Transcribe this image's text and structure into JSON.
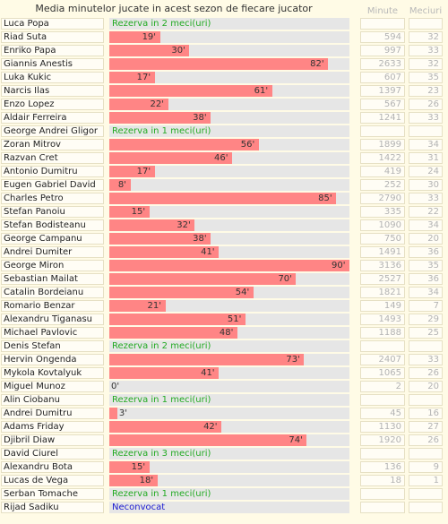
{
  "chart_data": {
    "type": "bar",
    "title": "Media minutelor jucate in acest sezon de fiecare jucator",
    "columns": {
      "minutes": "Minute",
      "matches": "Meciuri"
    },
    "xlim": [
      0,
      90
    ],
    "colors": {
      "bar": "#ff8585",
      "track": "#e6e6e6",
      "reserve": "#22aa22",
      "uncalled": "#1a1ad0"
    },
    "rows": [
      {
        "name": "Luca Popa",
        "note": "Rezerva in 2 meci(uri)",
        "note_type": "reserve"
      },
      {
        "name": "Riad Suta",
        "avg": 19,
        "label": "19'",
        "minutes": "594",
        "matches": "32"
      },
      {
        "name": "Enriko Papa",
        "avg": 30,
        "label": "30'",
        "minutes": "997",
        "matches": "33"
      },
      {
        "name": "Giannis Anestis",
        "avg": 82,
        "label": "82'",
        "minutes": "2633",
        "matches": "32"
      },
      {
        "name": "Luka Kukic",
        "avg": 17,
        "label": "17'",
        "minutes": "607",
        "matches": "35"
      },
      {
        "name": "Narcis Ilas",
        "avg": 61,
        "label": "61'",
        "minutes": "1397",
        "matches": "23"
      },
      {
        "name": "Enzo Lopez",
        "avg": 22,
        "label": "22'",
        "minutes": "567",
        "matches": "26"
      },
      {
        "name": "Aldair Ferreira",
        "avg": 38,
        "label": "38'",
        "minutes": "1241",
        "matches": "33"
      },
      {
        "name": "George Andrei Gligor",
        "note": "Rezerva in 1 meci(uri)",
        "note_type": "reserve"
      },
      {
        "name": "Zoran Mitrov",
        "avg": 56,
        "label": "56'",
        "minutes": "1899",
        "matches": "34"
      },
      {
        "name": "Razvan Cret",
        "avg": 46,
        "label": "46'",
        "minutes": "1422",
        "matches": "31"
      },
      {
        "name": "Antonio Dumitru",
        "avg": 17,
        "label": "17'",
        "minutes": "419",
        "matches": "24"
      },
      {
        "name": "Eugen Gabriel David",
        "avg": 8,
        "label": "8'",
        "minutes": "252",
        "matches": "30"
      },
      {
        "name": "Charles Petro",
        "avg": 85,
        "label": "85'",
        "minutes": "2790",
        "matches": "33"
      },
      {
        "name": "Stefan Panoiu",
        "avg": 15,
        "label": "15'",
        "minutes": "335",
        "matches": "22"
      },
      {
        "name": "Stefan Bodisteanu",
        "avg": 32,
        "label": "32'",
        "minutes": "1090",
        "matches": "34"
      },
      {
        "name": "George Campanu",
        "avg": 38,
        "label": "38'",
        "minutes": "750",
        "matches": "20"
      },
      {
        "name": "Andrei Dumiter",
        "avg": 41,
        "label": "41'",
        "minutes": "1491",
        "matches": "36"
      },
      {
        "name": "George Miron",
        "avg": 90,
        "label": "90'",
        "minutes": "3136",
        "matches": "35"
      },
      {
        "name": "Sebastian Mailat",
        "avg": 70,
        "label": "70'",
        "minutes": "2527",
        "matches": "36"
      },
      {
        "name": "Catalin Bordeianu",
        "avg": 54,
        "label": "54'",
        "minutes": "1821",
        "matches": "34"
      },
      {
        "name": "Romario Benzar",
        "avg": 21,
        "label": "21'",
        "minutes": "149",
        "matches": "7"
      },
      {
        "name": "Alexandru Tiganasu",
        "avg": 51,
        "label": "51'",
        "minutes": "1493",
        "matches": "29"
      },
      {
        "name": "Michael Pavlovic",
        "avg": 48,
        "label": "48'",
        "minutes": "1188",
        "matches": "25"
      },
      {
        "name": "Denis Stefan",
        "note": "Rezerva in 2 meci(uri)",
        "note_type": "reserve"
      },
      {
        "name": "Hervin Ongenda",
        "avg": 73,
        "label": "73'",
        "minutes": "2407",
        "matches": "33"
      },
      {
        "name": "Mykola Kovtalyuk",
        "avg": 41,
        "label": "41'",
        "minutes": "1065",
        "matches": "26"
      },
      {
        "name": "Miguel Munoz",
        "avg": 0,
        "label": "0'",
        "minutes": "2",
        "matches": "20"
      },
      {
        "name": "Alin Ciobanu",
        "note": "Rezerva in 1 meci(uri)",
        "note_type": "reserve"
      },
      {
        "name": "Andrei Dumitru",
        "avg": 3,
        "label": "3'",
        "minutes": "45",
        "matches": "16"
      },
      {
        "name": "Adams Friday",
        "avg": 42,
        "label": "42'",
        "minutes": "1130",
        "matches": "27"
      },
      {
        "name": "Djibril Diaw",
        "avg": 74,
        "label": "74'",
        "minutes": "1920",
        "matches": "26"
      },
      {
        "name": "David Ciurel",
        "note": "Rezerva in 3 meci(uri)",
        "note_type": "reserve"
      },
      {
        "name": "Alexandru Bota",
        "avg": 15,
        "label": "15'",
        "minutes": "136",
        "matches": "9"
      },
      {
        "name": "Lucas de Vega",
        "avg": 18,
        "label": "18'",
        "minutes": "18",
        "matches": "1"
      },
      {
        "name": "Serban Tomache",
        "note": "Rezerva in 1 meci(uri)",
        "note_type": "reserve"
      },
      {
        "name": "Rijad Sadiku",
        "note": "Neconvocat",
        "note_type": "uncalled"
      }
    ]
  }
}
